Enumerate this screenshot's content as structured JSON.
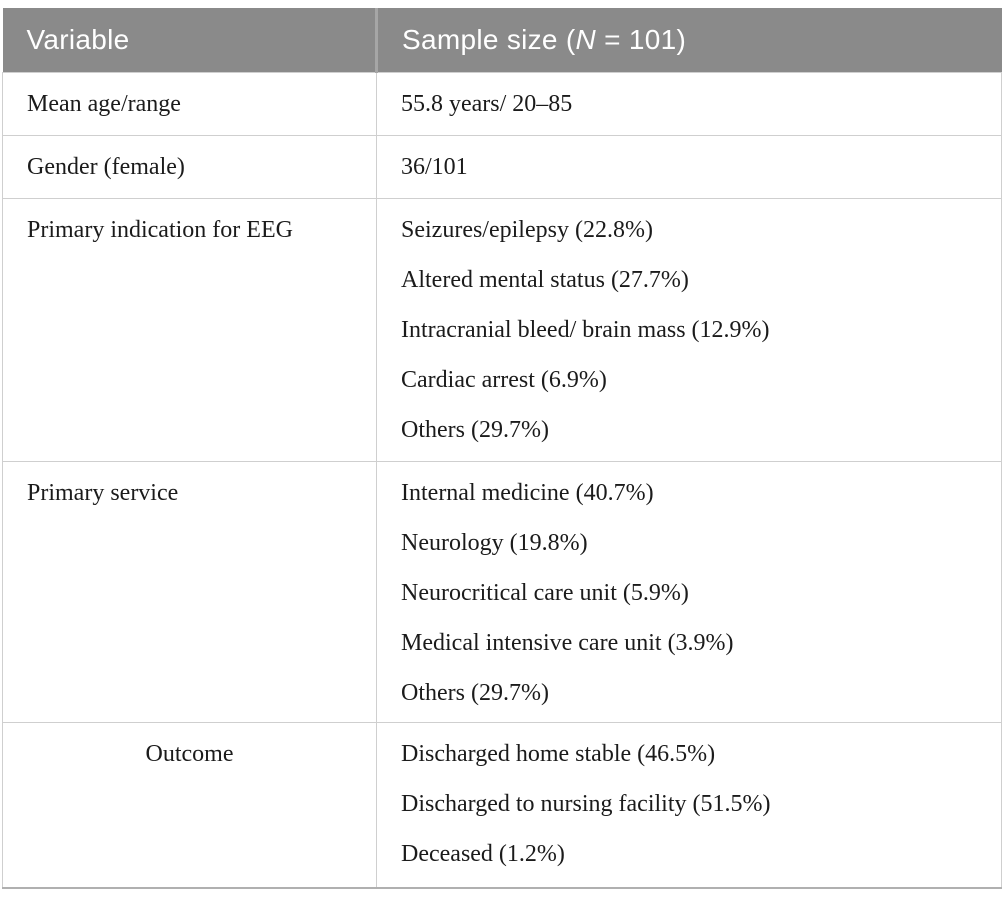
{
  "table": {
    "header": {
      "variable": "Variable",
      "sample_prefix": "Sample size (",
      "sample_italic": "N",
      "sample_suffix": " = 101)"
    },
    "rows": [
      {
        "variable": "Mean age/range",
        "values": [
          "55.8 years/ 20–85"
        ]
      },
      {
        "variable": "Gender (female)",
        "values": [
          "36/101"
        ]
      },
      {
        "variable": "Primary indication for EEG",
        "values": [
          "Seizures/epilepsy (22.8%)",
          "Altered mental status (27.7%)",
          "Intracranial bleed/ brain mass (12.9%)",
          "Cardiac arrest (6.9%)",
          "Others (29.7%)"
        ]
      },
      {
        "variable": "Primary service",
        "values": [
          "Internal medicine (40.7%)",
          "Neurology (19.8%)",
          "Neurocritical care unit (5.9%)",
          "Medical intensive care unit (3.9%)",
          "Others (29.7%)"
        ]
      },
      {
        "variable": "Outcome",
        "values": [
          "Discharged home stable (46.5%)",
          "Discharged to nursing facility (51.5%)",
          "Deceased (1.2%)"
        ]
      }
    ]
  },
  "colors": {
    "header_bg": "#8a8a8a",
    "header_text": "#ffffff",
    "header_divider": "#a6a6a6",
    "grid_line": "#cfcfcf",
    "bottom_border": "#b0b0b0",
    "body_text": "#1b1b1b",
    "page_bg": "#ffffff"
  }
}
